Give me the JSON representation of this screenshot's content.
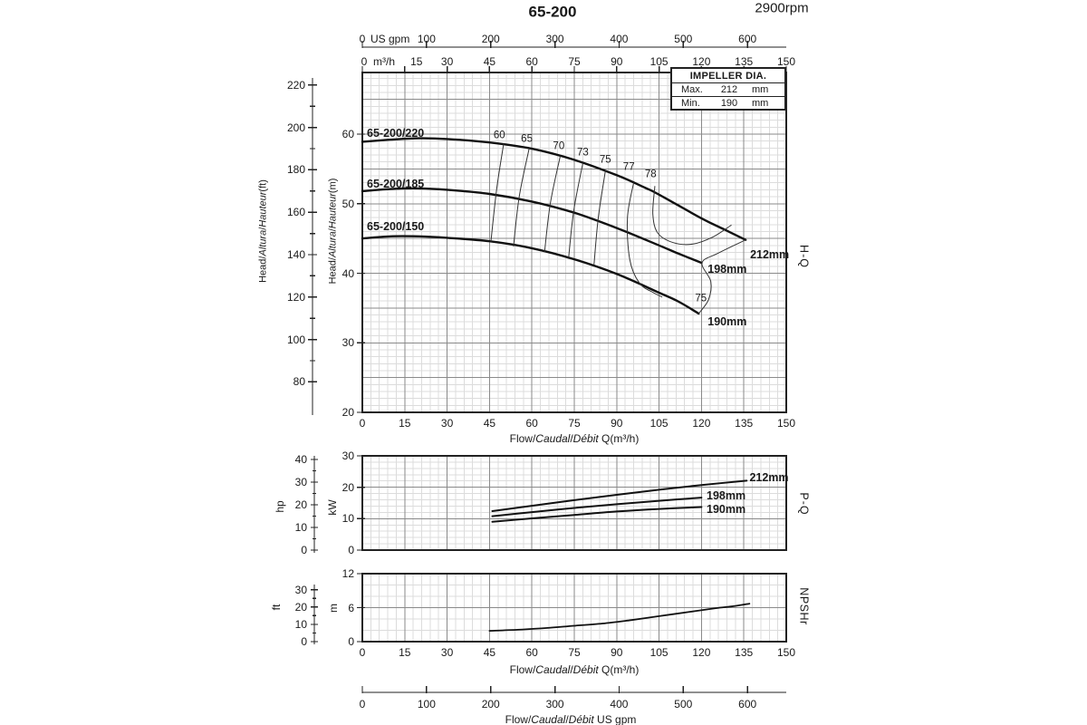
{
  "page": {
    "title": "65-200",
    "rpm": "2900rpm",
    "ink": "#1a1a1a",
    "grid_minor_color": "#dcdcdc",
    "grid_major_color": "#8a8a8a",
    "curve_color": "#111111"
  },
  "impeller_box": {
    "header": "IMPELLER DIA.",
    "rows": [
      {
        "label": "Max.",
        "value": "212",
        "unit": "mm"
      },
      {
        "label": "Min.",
        "value": "190",
        "unit": "mm"
      }
    ]
  },
  "axes": {
    "top_gpm": {
      "zero": "0",
      "unit": "US gpm",
      "ticks": [
        100,
        200,
        300,
        400,
        500,
        600
      ]
    },
    "top_m3h": {
      "zero": "0",
      "unit": "m³/h",
      "ticks": [
        15,
        30,
        45,
        60,
        75,
        90,
        105,
        120,
        135,
        150
      ]
    },
    "bottom_gpm": {
      "ticks": [
        0,
        100,
        200,
        300,
        400,
        500,
        600
      ],
      "caption_parts": [
        "Flow/",
        "Caudal",
        "/",
        "Débit",
        "  US gpm"
      ]
    }
  },
  "chart_data": [
    {
      "name": "H-Q",
      "type": "line",
      "right_label": "H-Q",
      "xlabel_parts": [
        "Flow/",
        "Caudal",
        "/",
        "Débit",
        " Q(m³/h)"
      ],
      "ylabel_ft_parts": [
        "Head/",
        "Altura",
        "/",
        "Hauteur",
        "(ft)"
      ],
      "ylabel_m_parts": [
        "Head/",
        "Altura",
        "/",
        "Hauteur",
        "(m)"
      ],
      "x_ticks": [
        0,
        15,
        30,
        45,
        60,
        75,
        90,
        105,
        120,
        135,
        150
      ],
      "y_ticks_m": [
        20,
        30,
        40,
        50,
        60
      ],
      "y_ticks_ft": [
        80,
        100,
        120,
        140,
        160,
        180,
        200,
        220
      ],
      "xlim": [
        0,
        150
      ],
      "ylim_m": [
        20,
        68.9
      ],
      "series": [
        {
          "name": "65-200/220",
          "dia": "212mm",
          "end_label": "212mm",
          "end_label_pos": [
            137.2,
            42.7
          ],
          "points": [
            [
              0,
              58.9
            ],
            [
              10,
              59.2
            ],
            [
              20,
              59.4
            ],
            [
              30,
              59.3
            ],
            [
              45,
              58.8
            ],
            [
              60,
              57.9
            ],
            [
              75,
              56.3
            ],
            [
              90,
              54.1
            ],
            [
              100,
              52.3
            ],
            [
              105,
              51.3
            ],
            [
              120,
              47.9
            ],
            [
              128,
              46.3
            ],
            [
              135.6,
              44.8
            ]
          ]
        },
        {
          "name": "65-200/185",
          "dia": "198mm",
          "end_label": "198mm",
          "end_label_pos": [
            122.2,
            40.6
          ],
          "points": [
            [
              0,
              51.8
            ],
            [
              10,
              52.1
            ],
            [
              20,
              52.2
            ],
            [
              30,
              52.0
            ],
            [
              45,
              51.4
            ],
            [
              60,
              50.3
            ],
            [
              75,
              48.7
            ],
            [
              90,
              46.5
            ],
            [
              105,
              44.0
            ],
            [
              112,
              42.8
            ],
            [
              120,
              41.5
            ]
          ]
        },
        {
          "name": "65-200/150",
          "dia": "190mm",
          "end_label": "190mm",
          "end_label_pos": [
            122.2,
            33.0
          ],
          "points": [
            [
              0,
              45.0
            ],
            [
              10,
              45.3
            ],
            [
              20,
              45.3
            ],
            [
              30,
              45.1
            ],
            [
              45,
              44.6
            ],
            [
              60,
              43.6
            ],
            [
              75,
              42.0
            ],
            [
              90,
              39.9
            ],
            [
              105,
              37.2
            ],
            [
              112,
              35.9
            ],
            [
              119,
              34.2
            ]
          ]
        }
      ],
      "efficiency_lines": [
        {
          "label": "60",
          "points": [
            [
              50,
              58.6
            ],
            [
              47.5,
              52.0
            ],
            [
              45.5,
              44.6
            ]
          ]
        },
        {
          "label": "65",
          "points": [
            [
              59,
              57.9
            ],
            [
              55.5,
              51.0
            ],
            [
              53.5,
              43.9
            ]
          ]
        },
        {
          "label": "70",
          "points": [
            [
              70,
              56.8
            ],
            [
              66.5,
              50.0
            ],
            [
              64.5,
              43.1
            ]
          ]
        },
        {
          "label": "73",
          "points": [
            [
              78,
              55.8
            ],
            [
              74.8,
              49.0
            ],
            [
              73,
              42.3
            ]
          ]
        },
        {
          "label": "75",
          "points": [
            [
              86,
              54.7
            ],
            [
              83.5,
              48.0
            ],
            [
              82,
              41.3
            ]
          ]
        },
        {
          "label": "77",
          "points": [
            [
              96,
              53.0
            ],
            [
              93.8,
              48.0
            ],
            [
              94.6,
              42.0
            ],
            [
              98,
              38.6
            ],
            [
              103,
              37.2
            ],
            [
              106,
              36.6
            ]
          ]
        },
        {
          "label": "78",
          "points": [
            [
              103.5,
              52.5
            ],
            [
              102.8,
              48.5
            ],
            [
              104.5,
              45.8
            ],
            [
              110,
              44.4
            ],
            [
              117,
              44.2
            ],
            [
              124,
              45.2
            ],
            [
              130.5,
              46.9
            ]
          ]
        }
      ],
      "efficiency_labels": [
        {
          "text": "60",
          "x": 48.5,
          "y": 59.8
        },
        {
          "text": "65",
          "x": 58.2,
          "y": 59.2
        },
        {
          "text": "70",
          "x": 69.5,
          "y": 58.2
        },
        {
          "text": "73",
          "x": 78.0,
          "y": 57.2
        },
        {
          "text": "75",
          "x": 86.0,
          "y": 56.2
        },
        {
          "text": "77",
          "x": 94.3,
          "y": 55.2
        },
        {
          "text": "78",
          "x": 102.0,
          "y": 54.1
        },
        {
          "text": "75",
          "x": 119.8,
          "y": 36.3
        }
      ],
      "boundary_line": [
        [
          135.6,
          44.8
        ],
        [
          126,
          42.9
        ],
        [
          120.2,
          41.5
        ],
        [
          123.3,
          38.8
        ],
        [
          122.5,
          36.2
        ],
        [
          119,
          34.2
        ]
      ]
    },
    {
      "name": "P-Q",
      "type": "line",
      "right_label": "P-Q",
      "y_ticks_kw": [
        0,
        10,
        20,
        30
      ],
      "y_ticks_hp": [
        0,
        10,
        20,
        30,
        40
      ],
      "ylabel_kw": "kW",
      "ylabel_hp": "hp",
      "xlim": [
        0,
        150
      ],
      "ylim_kw": [
        0,
        30
      ],
      "series": [
        {
          "name": "212mm",
          "end_label": "212mm",
          "end_label_pos": [
            137.0,
            23.1
          ],
          "points": [
            [
              46,
              12.4
            ],
            [
              60,
              14.1
            ],
            [
              75,
              15.9
            ],
            [
              90,
              17.6
            ],
            [
              105,
              19.2
            ],
            [
              120,
              20.7
            ],
            [
              136,
              22.1
            ]
          ]
        },
        {
          "name": "198mm",
          "end_label": "198mm",
          "end_label_pos": [
            121.8,
            17.4
          ],
          "points": [
            [
              46,
              10.8
            ],
            [
              60,
              12.1
            ],
            [
              75,
              13.4
            ],
            [
              90,
              14.6
            ],
            [
              105,
              15.7
            ],
            [
              120,
              16.7
            ]
          ]
        },
        {
          "name": "190mm",
          "end_label": "190mm",
          "end_label_pos": [
            121.8,
            13.0
          ],
          "points": [
            [
              46,
              9.0
            ],
            [
              60,
              10.1
            ],
            [
              75,
              11.2
            ],
            [
              90,
              12.3
            ],
            [
              105,
              13.1
            ],
            [
              120,
              13.7
            ]
          ]
        }
      ]
    },
    {
      "name": "NPSHr",
      "type": "line",
      "right_label": "NPSHr",
      "xlabel_parts": [
        "Flow/",
        "Caudal",
        "/",
        "Débit",
        " Q(m³/h)"
      ],
      "x_ticks": [
        0,
        15,
        30,
        45,
        60,
        75,
        90,
        105,
        120,
        135,
        150
      ],
      "y_ticks_m": [
        0,
        6,
        12
      ],
      "y_ticks_ft": [
        0,
        10,
        20,
        30
      ],
      "ylabel_m": "m",
      "ylabel_ft": "ft",
      "xlim": [
        0,
        150
      ],
      "ylim_m": [
        0,
        12
      ],
      "series": [
        {
          "name": "NPSHr",
          "points": [
            [
              45,
              1.9
            ],
            [
              55,
              2.1
            ],
            [
              65,
              2.4
            ],
            [
              75,
              2.8
            ],
            [
              85,
              3.2
            ],
            [
              95,
              3.8
            ],
            [
              105,
              4.5
            ],
            [
              115,
              5.2
            ],
            [
              125,
              5.9
            ],
            [
              132,
              6.3
            ],
            [
              137,
              6.7
            ]
          ]
        }
      ]
    }
  ]
}
